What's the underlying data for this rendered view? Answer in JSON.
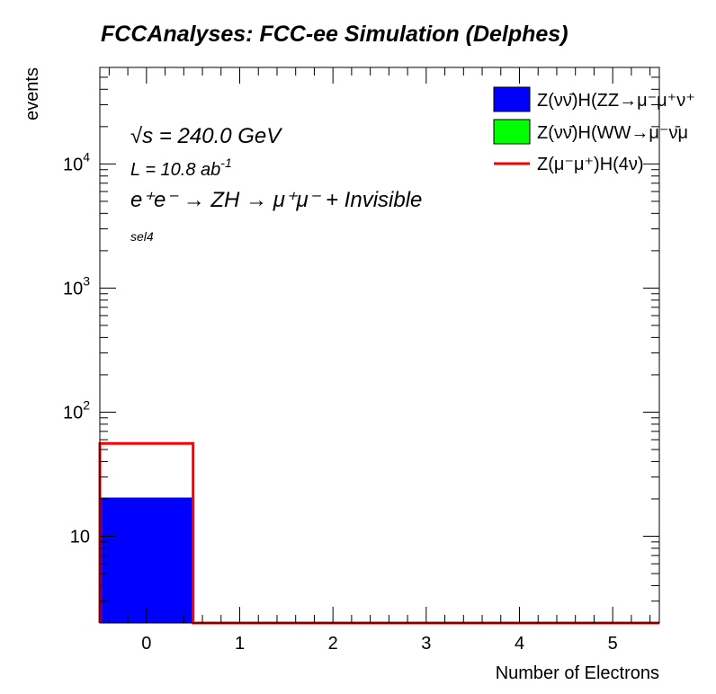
{
  "chart_data": {
    "type": "bar",
    "title": "FCCAnalyses: FCC-ee Simulation (Delphes)",
    "xlabel": "Number of Electrons",
    "ylabel": "events",
    "x_ticks": [
      "0",
      "1",
      "2",
      "3",
      "4",
      "5"
    ],
    "y_ticks": [
      {
        "value": 10,
        "base": "10",
        "exp": ""
      },
      {
        "value": 100,
        "base": "10",
        "exp": "2"
      },
      {
        "value": 1000,
        "base": "10",
        "exp": "3"
      },
      {
        "value": 10000,
        "base": "10",
        "exp": "4"
      }
    ],
    "xlim": [
      -0.5,
      5.5
    ],
    "ylim": [
      2,
      60000
    ],
    "log_y": true,
    "grid": false,
    "bin_edges": [
      -0.5,
      0.5,
      1.5,
      2.5,
      3.5,
      4.5,
      5.5
    ],
    "series": [
      {
        "name": "Z(νν̄)H(ZZ→μ⁻μ⁺ν⁺",
        "style": "filled",
        "color": "#0000ff",
        "values": [
          20.5,
          0,
          0,
          0,
          0,
          0
        ]
      },
      {
        "name": "Z(νν̄)H(WW→μ⁻ν̄μ",
        "style": "filled",
        "color": "#00ff00",
        "values": [
          0,
          0,
          0,
          0,
          0,
          0
        ]
      },
      {
        "name": "Z(μ⁻μ⁺)H(4ν)",
        "style": "line",
        "color": "#ff0000",
        "values": [
          56,
          0,
          0,
          0,
          0,
          0
        ]
      }
    ],
    "annotations": {
      "sqrt_s": "√s = 240.0 GeV",
      "lumi_base": "L = 10.8 ab",
      "lumi_exp": "-1",
      "process": "e⁺e⁻ → ZH → μ⁺μ⁻ + Invisible",
      "selection": "sel4"
    },
    "legend_position": "top-right"
  }
}
